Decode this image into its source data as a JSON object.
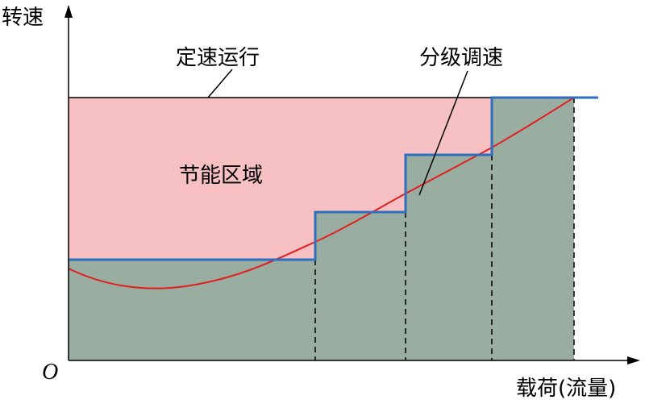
{
  "axes": {
    "y_label": "转速",
    "x_label": "载荷(流量)",
    "origin": "O"
  },
  "labels": {
    "constant_speed": "定速运行",
    "staged_speed": "分级调速",
    "saving_zone": "节能区域"
  }
}
